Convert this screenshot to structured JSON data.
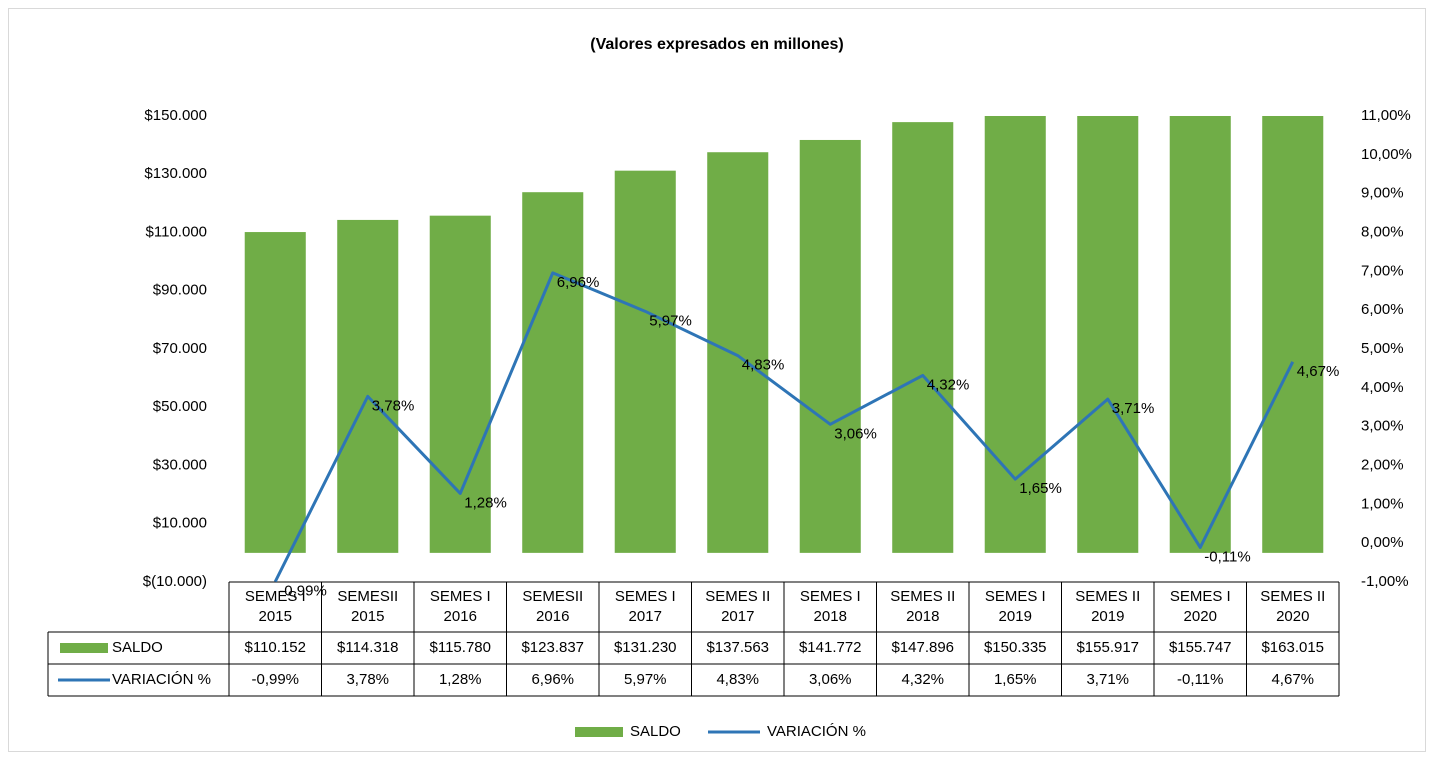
{
  "chart_data": {
    "type": "bar-line",
    "title": "(Valores expresados en millones)",
    "categories": [
      "SEMES I\n2015",
      "SEMESII\n2015",
      "SEMES I\n2016",
      "SEMESII\n2016",
      "SEMES I\n2017",
      "SEMES II\n2017",
      "SEMES I\n2018",
      "SEMES II\n2018",
      "SEMES I\n2019",
      "SEMES II\n2019",
      "SEMES I\n2020",
      "SEMES II\n2020"
    ],
    "series": [
      {
        "name": "SALDO",
        "type": "bar",
        "color": "#70ad47",
        "values": [
          110152,
          114318,
          115780,
          123837,
          131230,
          137563,
          141772,
          147896,
          150335,
          155917,
          155747,
          163015
        ],
        "value_labels": [
          "$110.152",
          "$114.318",
          "$115.780",
          "$123.837",
          "$131.230",
          "$137.563",
          "$141.772",
          "$147.896",
          "$150.335",
          "$155.917",
          "$155.747",
          "$163.015"
        ]
      },
      {
        "name": "VARIACIÓN %",
        "type": "line",
        "axis": "y2",
        "color": "#2e75b6",
        "values": [
          -0.99,
          3.78,
          1.28,
          6.96,
          5.97,
          4.83,
          3.06,
          4.32,
          1.65,
          3.71,
          -0.11,
          4.67
        ],
        "value_labels": [
          "-0,99%",
          "3,78%",
          "1,28%",
          "6,96%",
          "5,97%",
          "4,83%",
          "3,06%",
          "4,32%",
          "1,65%",
          "3,71%",
          "-0,11%",
          "4,67%"
        ]
      }
    ],
    "ylim": [
      -10000,
      150000
    ],
    "yticks": [
      {
        "value": -10000,
        "label": "$(10.000)"
      },
      {
        "value": 10000,
        "label": "$10.000"
      },
      {
        "value": 30000,
        "label": "$30.000"
      },
      {
        "value": 50000,
        "label": "$50.000"
      },
      {
        "value": 70000,
        "label": "$70.000"
      },
      {
        "value": 90000,
        "label": "$90.000"
      },
      {
        "value": 110000,
        "label": "$110.000"
      },
      {
        "value": 130000,
        "label": "$130.000"
      },
      {
        "value": 150000,
        "label": "$150.000"
      }
    ],
    "y2lim": [
      -1,
      11
    ],
    "y2ticks": [
      {
        "value": -1,
        "label": "-1,00%"
      },
      {
        "value": 0,
        "label": "0,00%"
      },
      {
        "value": 1,
        "label": "1,00%"
      },
      {
        "value": 2,
        "label": "2,00%"
      },
      {
        "value": 3,
        "label": "3,00%"
      },
      {
        "value": 4,
        "label": "4,00%"
      },
      {
        "value": 5,
        "label": "5,00%"
      },
      {
        "value": 6,
        "label": "6,00%"
      },
      {
        "value": 7,
        "label": "7,00%"
      },
      {
        "value": 8,
        "label": "8,00%"
      },
      {
        "value": 9,
        "label": "9,00%"
      },
      {
        "value": 10,
        "label": "10,00%"
      },
      {
        "value": 11,
        "label": "11,00%"
      }
    ],
    "legend": "bottom"
  }
}
